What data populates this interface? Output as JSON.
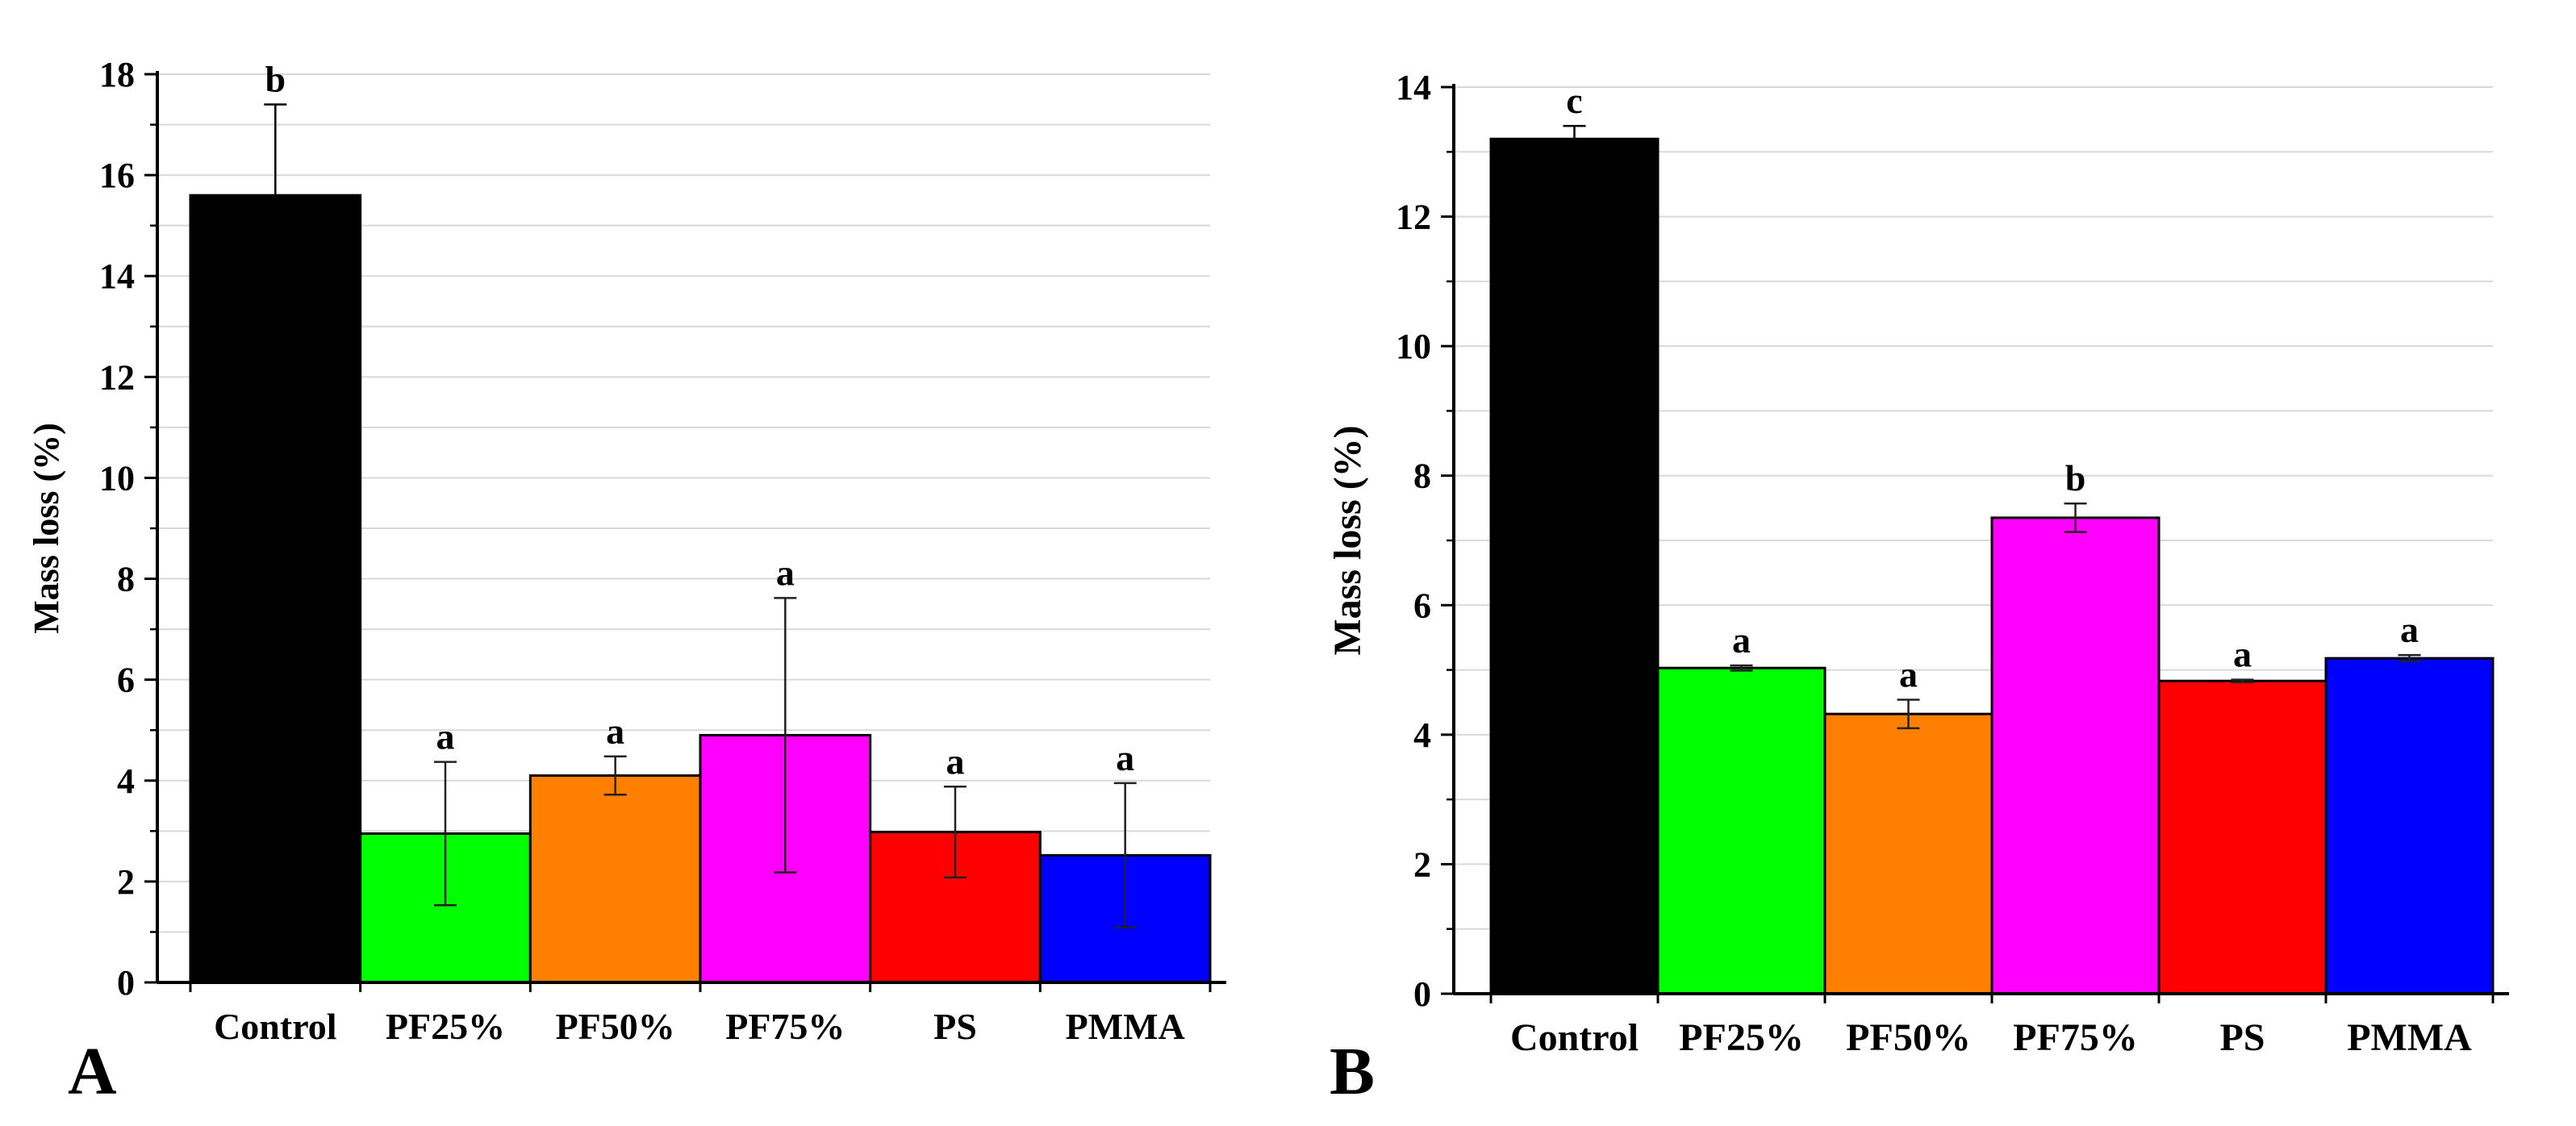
{
  "chart_data": [
    {
      "type": "bar",
      "panel_label": "A",
      "categories": [
        "Control",
        "PF25%",
        "PF50%",
        "PF75%",
        "PS",
        "PMMA"
      ],
      "values": [
        15.6,
        2.95,
        4.1,
        4.9,
        2.98,
        2.52
      ],
      "errors": [
        1.8,
        1.42,
        0.38,
        2.72,
        0.9,
        1.43
      ],
      "significance": [
        "b",
        "a",
        "a",
        "a",
        "a",
        "a"
      ],
      "colors": [
        "#000000",
        "#00ff00",
        "#ff8000",
        "#ff00ff",
        "#ff0000",
        "#0000ff"
      ],
      "title": "",
      "xlabel": "",
      "ylabel": "Mass loss (%)",
      "ylim": [
        0,
        18
      ],
      "yticks": [
        0,
        2,
        4,
        6,
        8,
        10,
        12,
        14,
        16,
        18
      ],
      "grid": true
    },
    {
      "type": "bar",
      "panel_label": "B",
      "categories": [
        "Control",
        "PF25%",
        "PF50%",
        "PF75%",
        "PS",
        "PMMA"
      ],
      "values": [
        13.2,
        5.03,
        4.32,
        7.35,
        4.83,
        5.18
      ],
      "errors": [
        0.2,
        0.04,
        0.22,
        0.22,
        0.02,
        0.05
      ],
      "significance": [
        "c",
        "a",
        "a",
        "b",
        "a",
        "a"
      ],
      "colors": [
        "#000000",
        "#00ff00",
        "#ff8000",
        "#ff00ff",
        "#ff0000",
        "#0000ff"
      ],
      "title": "",
      "xlabel": "",
      "ylabel": "Mass loss (%)",
      "ylim": [
        0,
        14
      ],
      "yticks": [
        0,
        2,
        4,
        6,
        8,
        10,
        12,
        14
      ],
      "grid": true
    }
  ]
}
